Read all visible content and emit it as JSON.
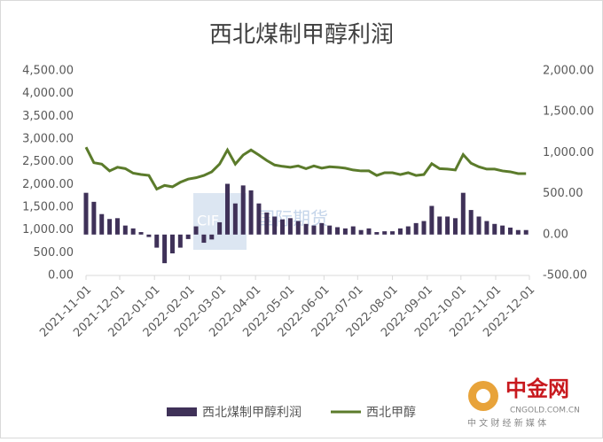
{
  "chart_data": {
    "type": "bar-line",
    "title": "西北煤制甲醇利润",
    "x": [
      "2021-11-01",
      "2021-11-08",
      "2021-11-15",
      "2021-11-22",
      "2021-11-29",
      "2021-12-06",
      "2021-12-13",
      "2021-12-20",
      "2021-12-27",
      "2022-01-03",
      "2022-01-10",
      "2022-01-17",
      "2022-01-24",
      "2022-01-31",
      "2022-02-07",
      "2022-02-14",
      "2022-02-21",
      "2022-02-28",
      "2022-03-07",
      "2022-03-14",
      "2022-03-21",
      "2022-03-28",
      "2022-04-04",
      "2022-04-11",
      "2022-04-18",
      "2022-04-25",
      "2022-05-02",
      "2022-05-09",
      "2022-05-16",
      "2022-05-23",
      "2022-05-30",
      "2022-06-06",
      "2022-06-13",
      "2022-06-20",
      "2022-06-27",
      "2022-07-04",
      "2022-07-11",
      "2022-07-18",
      "2022-07-25",
      "2022-08-01",
      "2022-08-08",
      "2022-08-15",
      "2022-08-22",
      "2022-08-29",
      "2022-09-05",
      "2022-09-12",
      "2022-09-19",
      "2022-09-26",
      "2022-10-03",
      "2022-10-10",
      "2022-10-17",
      "2022-10-24",
      "2022-10-31",
      "2022-11-07",
      "2022-11-14",
      "2022-11-21",
      "2022-11-28"
    ],
    "series": [
      {
        "name": "西北煤制甲醇利润",
        "type": "bar",
        "axis": "y2",
        "color": "#3f3158",
        "values": [
          510,
          400,
          250,
          190,
          200,
          110,
          75,
          30,
          -30,
          -160,
          -350,
          -230,
          -160,
          -55,
          100,
          -100,
          -60,
          150,
          620,
          380,
          600,
          540,
          380,
          270,
          220,
          185,
          200,
          165,
          130,
          110,
          140,
          110,
          90,
          75,
          100,
          55,
          75,
          30,
          40,
          40,
          75,
          100,
          140,
          165,
          350,
          220,
          220,
          200,
          510,
          300,
          220,
          165,
          130,
          110,
          85,
          55,
          55
        ]
      },
      {
        "name": "西北甲醇",
        "type": "line",
        "axis": "y",
        "color": "#5b7b2b",
        "values": [
          2820,
          2480,
          2450,
          2300,
          2380,
          2350,
          2250,
          2220,
          2200,
          1900,
          1980,
          1950,
          2050,
          2120,
          2150,
          2200,
          2280,
          2450,
          2760,
          2450,
          2650,
          2760,
          2650,
          2530,
          2430,
          2400,
          2380,
          2410,
          2350,
          2410,
          2360,
          2390,
          2380,
          2360,
          2320,
          2300,
          2300,
          2200,
          2260,
          2260,
          2220,
          2260,
          2200,
          2220,
          2460,
          2350,
          2340,
          2320,
          2660,
          2470,
          2390,
          2340,
          2340,
          2300,
          2280,
          2240,
          2240
        ]
      }
    ],
    "xticks": [
      "2021-11-01",
      "2021-12-01",
      "2022-01-01",
      "2022-02-01",
      "2022-03-01",
      "2022-04-01",
      "2022-05-01",
      "2022-06-01",
      "2022-07-01",
      "2022-08-01",
      "2022-09-01",
      "2022-10-01",
      "2022-11-01",
      "2022-12-01"
    ],
    "ylim": [
      0,
      4500
    ],
    "yticks": [
      {
        "value": 0,
        "label": "0.00"
      },
      {
        "value": 500,
        "label": "500.00"
      },
      {
        "value": 1000,
        "label": "1,000.00"
      },
      {
        "value": 1500,
        "label": "1,500.00"
      },
      {
        "value": 2000,
        "label": "2,000.00"
      },
      {
        "value": 2500,
        "label": "2,500.00"
      },
      {
        "value": 3000,
        "label": "3,000.00"
      },
      {
        "value": 3500,
        "label": "3,500.00"
      },
      {
        "value": 4000,
        "label": "4,000.00"
      },
      {
        "value": 4500,
        "label": "4,500.00"
      }
    ],
    "y2lim": [
      -500,
      2000
    ],
    "y2ticks": [
      {
        "value": -500,
        "label": "-500.00"
      },
      {
        "value": 0,
        "label": "0.00"
      },
      {
        "value": 500,
        "label": "500.00"
      },
      {
        "value": 1000,
        "label": "1,000.00"
      },
      {
        "value": 1500,
        "label": "1,500.00"
      },
      {
        "value": 2000,
        "label": "2,000.00"
      }
    ],
    "legend": "bottom",
    "watermark": {
      "left": "CIF",
      "right": "国际期货"
    },
    "logo": {
      "name": "中金网",
      "site": "CNGOLD.COM.CN",
      "slogan": "中 文 财 经 新 媒 体"
    }
  }
}
